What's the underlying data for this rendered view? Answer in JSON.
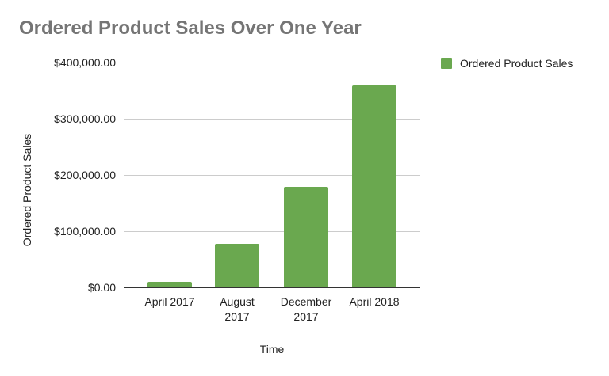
{
  "chart_data": {
    "type": "bar",
    "title": "Ordered Product Sales Over One Year",
    "xlabel": "Time",
    "ylabel": "Ordered Product Sales",
    "categories": [
      "April 2017",
      "August 2017",
      "December 2017",
      "April 2018"
    ],
    "category_lines": [
      [
        "April 2017"
      ],
      [
        "August",
        "2017"
      ],
      [
        "December",
        "2017"
      ],
      [
        "April 2018"
      ]
    ],
    "series": [
      {
        "name": "Ordered Product Sales",
        "color": "#6aa84f",
        "values": [
          10000,
          78000,
          179000,
          359000
        ]
      }
    ],
    "ylim": [
      0,
      400000
    ],
    "yticks": [
      "$0.00",
      "$100,000.00",
      "$200,000.00",
      "$300,000.00",
      "$400,000.00"
    ],
    "grid": true,
    "legend_position": "right"
  }
}
